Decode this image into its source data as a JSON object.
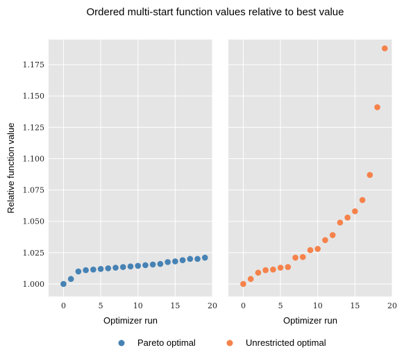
{
  "figure": {
    "title": "Ordered multi-start function values relative to best value",
    "ylabel": "Relative function value"
  },
  "colors": {
    "panel_bg": "#e5e5e5",
    "grid": "#ffffff",
    "pareto": "#4682b4",
    "unrestricted": "#f5824b"
  },
  "legend": {
    "placement": "bottom-center",
    "items": [
      {
        "label": "Pareto optimal",
        "color": "#4682b4"
      },
      {
        "label": "Unrestricted optimal",
        "color": "#f5824b"
      }
    ]
  },
  "chart_data": [
    {
      "type": "scatter",
      "xlabel": "Optimizer run",
      "ylabel": "Relative function value",
      "xlim": [
        -2,
        20
      ],
      "ylim": [
        0.99,
        1.195
      ],
      "xticks": [
        "0",
        "5",
        "10",
        "15",
        "20"
      ],
      "yticks": [
        "1.000",
        "1.025",
        "1.050",
        "1.075",
        "1.100",
        "1.125",
        "1.150",
        "1.175"
      ],
      "grid": true,
      "series": [
        {
          "name": "Pareto optimal",
          "color": "#4682b4",
          "x": [
            0,
            1,
            2,
            3,
            4,
            5,
            6,
            7,
            8,
            9,
            10,
            11,
            12,
            13,
            14,
            15,
            16,
            17,
            18,
            19
          ],
          "y": [
            1.0,
            1.004,
            1.01,
            1.011,
            1.0115,
            1.012,
            1.0125,
            1.013,
            1.0135,
            1.014,
            1.0145,
            1.015,
            1.0155,
            1.016,
            1.0175,
            1.018,
            1.019,
            1.02,
            1.02,
            1.021
          ]
        }
      ]
    },
    {
      "type": "scatter",
      "xlabel": "Optimizer run",
      "ylabel": "",
      "xlim": [
        -2,
        20
      ],
      "ylim": [
        0.99,
        1.195
      ],
      "xticks": [
        "0",
        "5",
        "10",
        "15",
        "20"
      ],
      "yticks": [],
      "grid": true,
      "series": [
        {
          "name": "Unrestricted optimal",
          "color": "#f5824b",
          "x": [
            0,
            1,
            2,
            3,
            4,
            5,
            6,
            7,
            8,
            9,
            10,
            11,
            12,
            13,
            14,
            15,
            16,
            17,
            18,
            19
          ],
          "y": [
            1.0,
            1.004,
            1.009,
            1.011,
            1.0115,
            1.013,
            1.0135,
            1.021,
            1.0215,
            1.027,
            1.028,
            1.035,
            1.039,
            1.049,
            1.053,
            1.058,
            1.067,
            1.087,
            1.141,
            1.188
          ]
        }
      ]
    }
  ]
}
